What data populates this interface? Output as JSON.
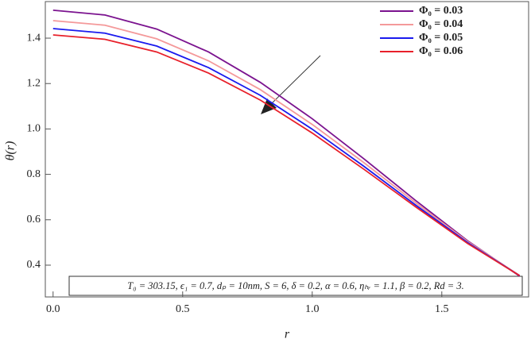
{
  "chart_data": {
    "type": "line",
    "x_label": "r",
    "y_label": "θ(r)",
    "x": [
      0,
      0.2,
      0.4,
      0.6,
      0.8,
      1.0,
      1.2,
      1.4,
      1.6,
      1.8
    ],
    "series": [
      {
        "name": "Φ₀ = 0.03",
        "color": "#7b138f",
        "values": [
          1.523,
          1.502,
          1.44,
          1.339,
          1.205,
          1.045,
          0.868,
          0.684,
          0.507,
          0.352
        ]
      },
      {
        "name": "Φ₀ = 0.04",
        "color": "#f4999a",
        "values": [
          1.477,
          1.457,
          1.397,
          1.3,
          1.173,
          1.02,
          0.851,
          0.674,
          0.504,
          0.355
        ]
      },
      {
        "name": "Φ₀ = 0.05",
        "color": "#1a1aee",
        "values": [
          1.442,
          1.422,
          1.365,
          1.27,
          1.148,
          0.999,
          0.835,
          0.664,
          0.499,
          0.354
        ]
      },
      {
        "name": "Φ₀ = 0.06",
        "color": "#e8202a",
        "values": [
          1.414,
          1.395,
          1.339,
          1.246,
          1.127,
          0.982,
          0.822,
          0.656,
          0.495,
          0.354
        ]
      }
    ],
    "xlim": [
      -0.03,
      1.835
    ],
    "ylim": [
      0.26,
      1.561
    ],
    "xticks": [
      {
        "value": 0,
        "label": "0.0"
      },
      0.5,
      {
        "value": 1,
        "label": "1.0"
      },
      1.5
    ],
    "yticks": [
      0.4,
      0.6,
      0.8,
      {
        "value": 1,
        "label": "1.0"
      },
      1.2,
      1.4
    ],
    "legend": "upper right",
    "annotation": "T₀ = 303.15, ϵ₁ = 0.7, dₚ = 10nm, S = 6, δ = 0.2, α = 0.6, ηₕᵣ = 1.1, β = 0.2, Rd = 3."
  }
}
